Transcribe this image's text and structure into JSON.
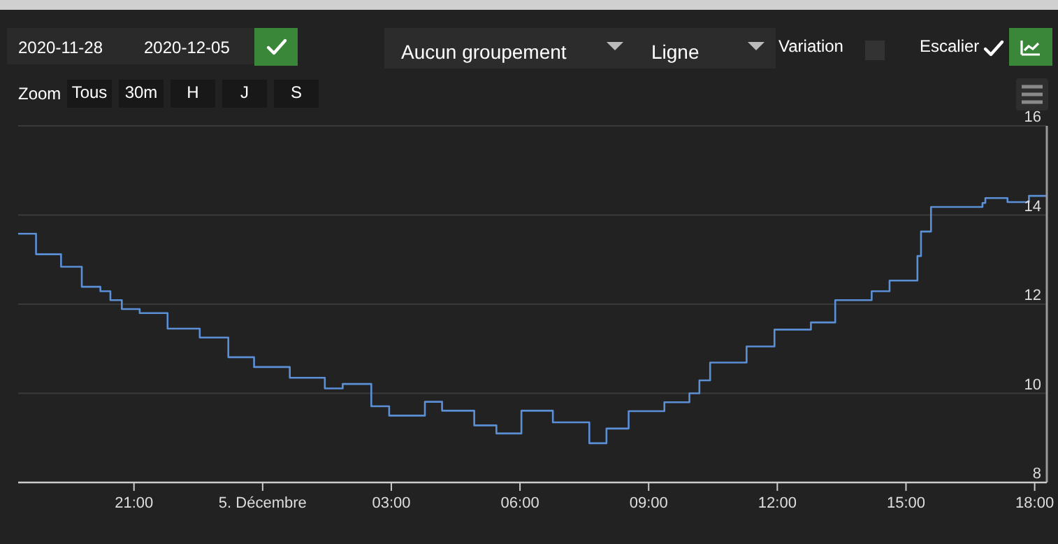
{
  "chart_data": {
    "type": "step",
    "color": "#5b8fd6",
    "x": [
      "2020-12-04T18:18",
      "2020-12-04T18:43",
      "2020-12-04T19:18",
      "2020-12-04T19:47",
      "2020-12-04T20:13",
      "2020-12-04T20:27",
      "2020-12-04T20:43",
      "2020-12-04T21:08",
      "2020-12-04T21:47",
      "2020-12-04T22:32",
      "2020-12-04T23:12",
      "2020-12-04T23:48",
      "2020-12-05T00:38",
      "2020-12-05T01:27",
      "2020-12-05T01:52",
      "2020-12-05T02:32",
      "2020-12-05T02:57",
      "2020-12-05T03:47",
      "2020-12-05T04:11",
      "2020-12-05T04:56",
      "2020-12-05T05:27",
      "2020-12-05T06:02",
      "2020-12-05T06:46",
      "2020-12-05T07:37",
      "2020-12-05T08:01",
      "2020-12-05T08:32",
      "2020-12-05T09:22",
      "2020-12-05T09:57",
      "2020-12-05T10:11",
      "2020-12-05T10:26",
      "2020-12-05T11:17",
      "2020-12-05T11:56",
      "2020-12-05T12:47",
      "2020-12-05T13:21",
      "2020-12-05T14:12",
      "2020-12-05T14:37",
      "2020-12-05T15:16",
      "2020-12-05T15:21",
      "2020-12-05T15:35",
      "2020-12-05T16:47",
      "2020-12-05T16:51",
      "2020-12-05T17:22",
      "2020-12-05T17:52",
      "2020-12-05T18:17"
    ],
    "values": [
      13.58,
      13.12,
      12.84,
      12.39,
      12.29,
      12.09,
      11.89,
      11.8,
      11.45,
      11.25,
      10.81,
      10.59,
      10.35,
      10.11,
      10.21,
      9.71,
      9.5,
      9.81,
      9.61,
      9.28,
      9.1,
      9.61,
      9.35,
      8.88,
      9.21,
      9.6,
      9.8,
      10.0,
      10.29,
      10.69,
      11.05,
      11.43,
      11.59,
      12.09,
      12.29,
      12.53,
      13.08,
      13.63,
      14.18,
      14.27,
      14.38,
      14.29,
      14.43,
      14.43
    ],
    "xlim": [
      "2020-12-04T18:18",
      "2020-12-05T18:17"
    ],
    "xticks": [
      {
        "value": "2020-12-04T21:00",
        "label": "21:00"
      },
      {
        "value": "2020-12-05T00:00",
        "label": "5. Décembre"
      },
      {
        "value": "2020-12-05T03:00",
        "label": "03:00"
      },
      {
        "value": "2020-12-05T06:00",
        "label": "06:00"
      },
      {
        "value": "2020-12-05T09:00",
        "label": "09:00"
      },
      {
        "value": "2020-12-05T12:00",
        "label": "12:00"
      },
      {
        "value": "2020-12-05T15:00",
        "label": "15:00"
      },
      {
        "value": "2020-12-05T18:00",
        "label": "18:00"
      }
    ],
    "ylim": [
      8,
      16
    ],
    "yticks": [
      8,
      10,
      12,
      14,
      16
    ],
    "grid": "y",
    "line_style": "solid",
    "marker": "none",
    "annotations": [
      "2020-11-28",
      "2020-12-05",
      "Aucun groupement",
      "Ligne",
      "Variation",
      "Escalier",
      "Zoom",
      "Tous",
      "30m",
      "H",
      "J",
      "S"
    ]
  }
}
